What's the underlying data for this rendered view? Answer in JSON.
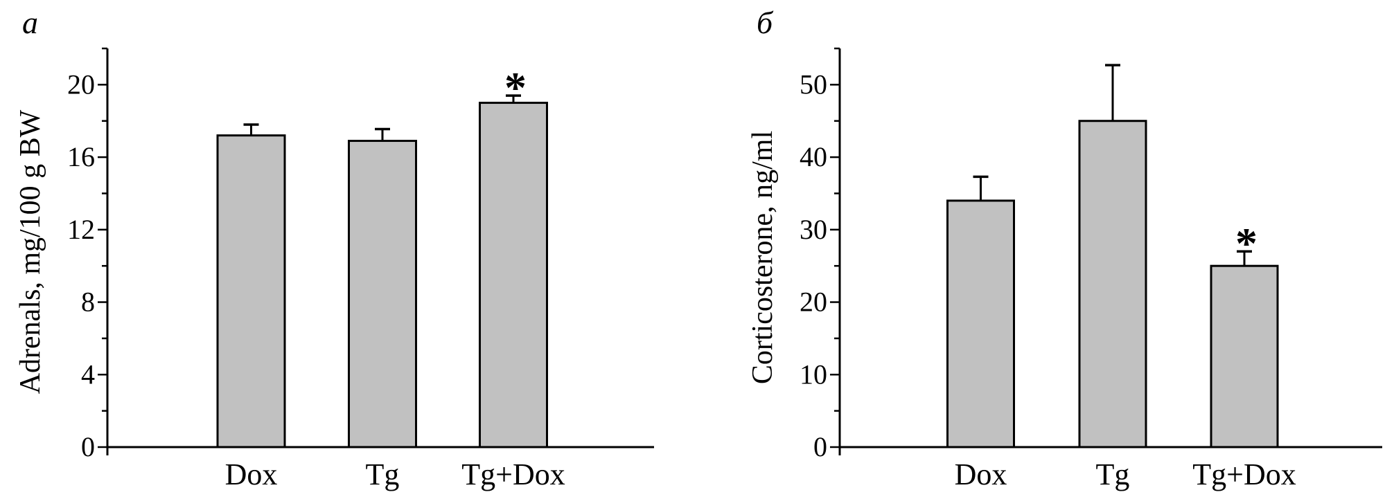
{
  "figure_title": "",
  "colors": {
    "background": "#ffffff",
    "bar_fill": "#c1c1c1",
    "stroke": "#000000"
  },
  "chart_data": [
    {
      "type": "bar",
      "panel_label": "a",
      "categories": [
        "Dox",
        "Tg",
        "Tg+Dox"
      ],
      "values": [
        17.2,
        16.9,
        19.0
      ],
      "errors_plus": [
        0.6,
        0.65,
        0.4
      ],
      "significance_markers": [
        "",
        "",
        "*"
      ],
      "ylabel": "Adrenals, mg/100 g BW",
      "xlabel": "",
      "ylim": [
        0,
        22
      ],
      "ytick_labels": [
        0,
        4,
        8,
        12,
        16,
        20
      ],
      "ytick_minor_step": 2,
      "grid": false,
      "legend": null,
      "bar_fill": "#c1c1c1",
      "bar_stroke": "#000000"
    },
    {
      "type": "bar",
      "panel_label": "б",
      "categories": [
        "Dox",
        "Tg",
        "Tg+Dox"
      ],
      "values": [
        34.0,
        45.0,
        25.0
      ],
      "errors_plus": [
        3.3,
        7.7,
        2.0
      ],
      "significance_markers": [
        "",
        "",
        "*"
      ],
      "ylabel": "Corticosterone, ng/ml",
      "xlabel": "",
      "ylim": [
        0,
        55
      ],
      "ytick_labels": [
        0,
        10,
        20,
        30,
        40,
        50
      ],
      "ytick_minor_step": 5,
      "grid": false,
      "legend": null,
      "bar_fill": "#c1c1c1",
      "bar_stroke": "#000000"
    }
  ]
}
